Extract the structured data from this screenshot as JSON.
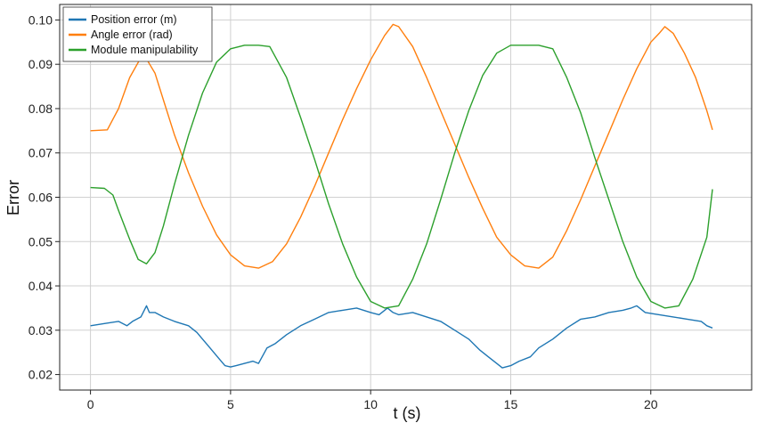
{
  "chart_data": {
    "type": "line",
    "title": "",
    "xlabel": "t (s)",
    "ylabel": "Error",
    "xlim": [
      -1.1,
      23.6
    ],
    "ylim": [
      0.0165,
      0.1035
    ],
    "xticks": [
      0,
      5,
      10,
      15,
      20
    ],
    "yticks": [
      0.02,
      0.03,
      0.04,
      0.05,
      0.06,
      0.07,
      0.08,
      0.09,
      0.1
    ],
    "ytick_labels": [
      "0.02",
      "0.03",
      "0.04",
      "0.05",
      "0.06",
      "0.07",
      "0.08",
      "0.09",
      "0.10"
    ],
    "grid": true,
    "legend_position": "top-left",
    "series": [
      {
        "name": "Position error (m)",
        "color": "#1f77b4",
        "x": [
          0,
          0.5,
          1.0,
          1.3,
          1.5,
          1.8,
          2.0,
          2.1,
          2.3,
          2.6,
          3.0,
          3.5,
          3.8,
          4.0,
          4.2,
          4.4,
          4.6,
          4.8,
          5.0,
          5.2,
          5.5,
          5.8,
          6.0,
          6.3,
          6.6,
          7.0,
          7.5,
          8.0,
          8.5,
          9.0,
          9.5,
          10.0,
          10.3,
          10.6,
          10.8,
          11.0,
          11.5,
          12.0,
          12.5,
          13.0,
          13.5,
          13.9,
          14.2,
          14.5,
          14.7,
          15.0,
          15.3,
          15.7,
          16.0,
          16.5,
          17.0,
          17.5,
          18.0,
          18.5,
          19.0,
          19.3,
          19.5,
          19.8,
          20.3,
          20.8,
          21.3,
          21.8,
          22.0,
          22.2
        ],
        "y": [
          0.031,
          0.0315,
          0.032,
          0.031,
          0.032,
          0.033,
          0.0355,
          0.034,
          0.034,
          0.033,
          0.032,
          0.031,
          0.0295,
          0.028,
          0.0265,
          0.025,
          0.0235,
          0.022,
          0.0217,
          0.022,
          0.0225,
          0.023,
          0.0225,
          0.026,
          0.027,
          0.029,
          0.031,
          0.0325,
          0.034,
          0.0345,
          0.035,
          0.034,
          0.0335,
          0.035,
          0.034,
          0.0335,
          0.034,
          0.033,
          0.032,
          0.03,
          0.028,
          0.0255,
          0.024,
          0.0225,
          0.0215,
          0.022,
          0.023,
          0.024,
          0.026,
          0.028,
          0.0305,
          0.0325,
          0.033,
          0.034,
          0.0345,
          0.035,
          0.0355,
          0.034,
          0.0335,
          0.033,
          0.0325,
          0.032,
          0.031,
          0.0305
        ]
      },
      {
        "name": "Angle error (rad)",
        "color": "#ff7f0e",
        "x": [
          0,
          0.6,
          1.0,
          1.4,
          1.8,
          2.0,
          2.3,
          2.6,
          3.0,
          3.5,
          4.0,
          4.5,
          5.0,
          5.5,
          6.0,
          6.5,
          7.0,
          7.5,
          8.0,
          8.5,
          9.0,
          9.5,
          10.0,
          10.5,
          10.8,
          11.0,
          11.5,
          12.0,
          12.5,
          13.0,
          13.5,
          14.0,
          14.5,
          15.0,
          15.5,
          16.0,
          16.5,
          17.0,
          17.5,
          18.0,
          18.5,
          19.0,
          19.5,
          20.0,
          20.3,
          20.5,
          20.8,
          21.2,
          21.6,
          22.0,
          22.2
        ],
        "y": [
          0.075,
          0.0752,
          0.08,
          0.087,
          0.0915,
          0.0912,
          0.088,
          0.082,
          0.074,
          0.0655,
          0.058,
          0.0515,
          0.047,
          0.0445,
          0.044,
          0.0455,
          0.0495,
          0.0555,
          0.0625,
          0.07,
          0.0775,
          0.0845,
          0.091,
          0.0965,
          0.099,
          0.0985,
          0.094,
          0.087,
          0.0795,
          0.072,
          0.0645,
          0.0575,
          0.051,
          0.047,
          0.0445,
          0.044,
          0.0465,
          0.0525,
          0.0595,
          0.067,
          0.0745,
          0.082,
          0.089,
          0.095,
          0.097,
          0.0985,
          0.097,
          0.0925,
          0.087,
          0.0795,
          0.0752
        ]
      },
      {
        "name": "Module manipulability",
        "color": "#2ca02c",
        "x": [
          0,
          0.5,
          0.8,
          1.0,
          1.4,
          1.7,
          2.0,
          2.3,
          2.6,
          3.0,
          3.5,
          4.0,
          4.5,
          5.0,
          5.5,
          6.0,
          6.4,
          7.0,
          7.5,
          8.0,
          8.5,
          9.0,
          9.5,
          10.0,
          10.5,
          11.0,
          11.5,
          12.0,
          12.5,
          13.0,
          13.5,
          14.0,
          14.5,
          15.0,
          15.5,
          16.0,
          16.5,
          17.0,
          17.5,
          18.0,
          18.5,
          19.0,
          19.5,
          20.0,
          20.5,
          21.0,
          21.5,
          22.0,
          22.2
        ],
        "y": [
          0.0622,
          0.062,
          0.0605,
          0.057,
          0.0505,
          0.046,
          0.045,
          0.0475,
          0.0535,
          0.063,
          0.074,
          0.0835,
          0.0905,
          0.0935,
          0.0943,
          0.0943,
          0.094,
          0.087,
          0.078,
          0.0685,
          0.0585,
          0.0495,
          0.042,
          0.0365,
          0.035,
          0.0355,
          0.0415,
          0.0495,
          0.0595,
          0.07,
          0.0795,
          0.0875,
          0.0925,
          0.0943,
          0.0943,
          0.0943,
          0.0935,
          0.087,
          0.079,
          0.069,
          0.0595,
          0.05,
          0.042,
          0.0365,
          0.035,
          0.0355,
          0.0415,
          0.051,
          0.0618
        ]
      }
    ]
  }
}
